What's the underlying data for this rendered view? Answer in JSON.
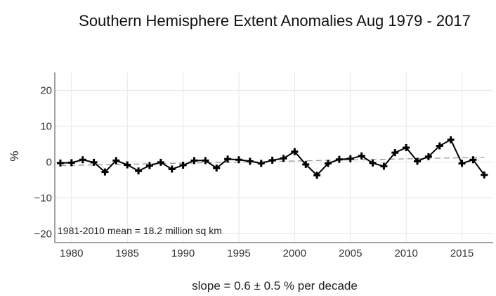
{
  "chart_data": {
    "type": "line",
    "title": "Southern Hemisphere Extent Anomalies Aug 1979 - 2017",
    "ylabel": "%",
    "xlabel": "slope = 0.6 ± 0.5 % per decade",
    "annotation": "1981-2010 mean = 18.2 million sq km",
    "xlim": [
      1978.5,
      2017.8
    ],
    "ylim": [
      -22.5,
      25
    ],
    "x_ticks": [
      1980,
      1985,
      1990,
      1995,
      2000,
      2005,
      2010,
      2015
    ],
    "x_tick_labels": [
      "1980",
      "1985",
      "1990",
      "1995",
      "2000",
      "2005",
      "2010",
      "2015"
    ],
    "y_ticks": [
      20,
      10,
      0,
      -10,
      -20
    ],
    "y_tick_labels": [
      "20",
      "10",
      "0",
      "−10",
      "−20"
    ],
    "grid": true,
    "series": [
      {
        "color": "#000000",
        "marker": "plus",
        "x": [
          1979,
          1980,
          1981,
          1982,
          1983,
          1984,
          1985,
          1986,
          1987,
          1988,
          1989,
          1990,
          1991,
          1992,
          1993,
          1994,
          1995,
          1996,
          1997,
          1998,
          1999,
          2000,
          2001,
          2002,
          2003,
          2004,
          2005,
          2006,
          2007,
          2008,
          2009,
          2010,
          2011,
          2012,
          2013,
          2014,
          2015,
          2016,
          2017
        ],
        "values": [
          -0.3,
          -0.2,
          0.6,
          -0.1,
          -2.8,
          0.4,
          -0.8,
          -2.5,
          -1.0,
          -0.1,
          -2.0,
          -0.9,
          0.4,
          0.4,
          -1.7,
          0.8,
          0.6,
          0.2,
          -0.4,
          0.5,
          1.0,
          2.9,
          -0.7,
          -3.7,
          -0.4,
          0.7,
          0.9,
          1.7,
          -0.3,
          -1.2,
          2.6,
          4.0,
          0.2,
          1.5,
          4.5,
          6.2,
          -0.4,
          0.6,
          -3.6
        ]
      },
      {
        "color": "#999999",
        "style": "dashed",
        "x": [
          1979,
          2017
        ],
        "values": [
          -1.0,
          1.3
        ]
      }
    ]
  }
}
